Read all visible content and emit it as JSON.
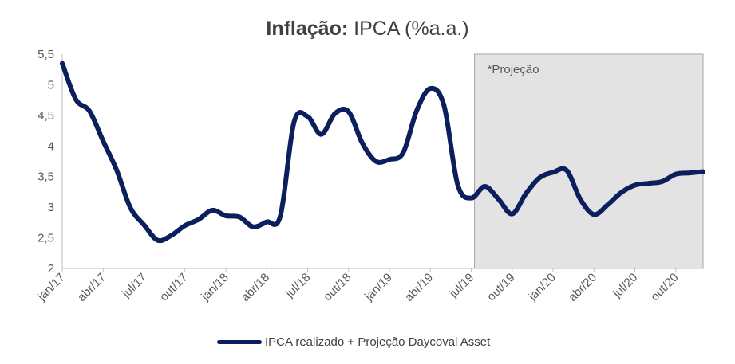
{
  "chart_data": {
    "type": "line",
    "title_bold": "Inflação:",
    "title_rest": " IPCA (%a.a.)",
    "annotation": "*Projeção",
    "ylim": [
      2,
      5.5
    ],
    "yticks": [
      "2",
      "2,5",
      "3",
      "3,5",
      "4",
      "4,5",
      "5",
      "5,5"
    ],
    "ytick_values": [
      2,
      2.5,
      3,
      3.5,
      4,
      4.5,
      5,
      5.5
    ],
    "xtick_labels": [
      "jan/17",
      "abr/17",
      "jul/17",
      "out/17",
      "jan/18",
      "abr/18",
      "jul/18",
      "out/18",
      "jan/19",
      "abr/19",
      "jul/19",
      "out/19",
      "jan/20",
      "abr/20",
      "jul/20",
      "out/20"
    ],
    "x_month_start": 0,
    "x_month_end": 47,
    "projection_start_month": 30,
    "projection_end_month": 47,
    "series": [
      {
        "name": "IPCA realizado + Projeção Daycoval Asset",
        "color": "#0b1f5c",
        "months": [
          0,
          1,
          2,
          3,
          4,
          5,
          6,
          7,
          8,
          9,
          10,
          11,
          12,
          13,
          14,
          15,
          16,
          17,
          18,
          19,
          20,
          21,
          22,
          23,
          24,
          25,
          26,
          27,
          28,
          29,
          30,
          31,
          32,
          33,
          34,
          35,
          36,
          37,
          38,
          39,
          40,
          41,
          42,
          43,
          44,
          45,
          46,
          47
        ],
        "values": [
          5.35,
          4.76,
          4.57,
          4.08,
          3.6,
          2.99,
          2.71,
          2.46,
          2.54,
          2.7,
          2.8,
          2.95,
          2.86,
          2.84,
          2.68,
          2.76,
          2.86,
          4.39,
          4.48,
          4.19,
          4.53,
          4.56,
          4.05,
          3.75,
          3.78,
          3.89,
          4.58,
          4.94,
          4.66,
          3.37,
          3.15,
          3.34,
          3.13,
          2.89,
          3.22,
          3.48,
          3.57,
          3.6,
          3.13,
          2.88,
          3.04,
          3.24,
          3.36,
          3.39,
          3.42,
          3.54,
          3.56,
          3.58
        ]
      }
    ]
  },
  "legend": {
    "label": "IPCA realizado + Projeção Daycoval Asset"
  }
}
